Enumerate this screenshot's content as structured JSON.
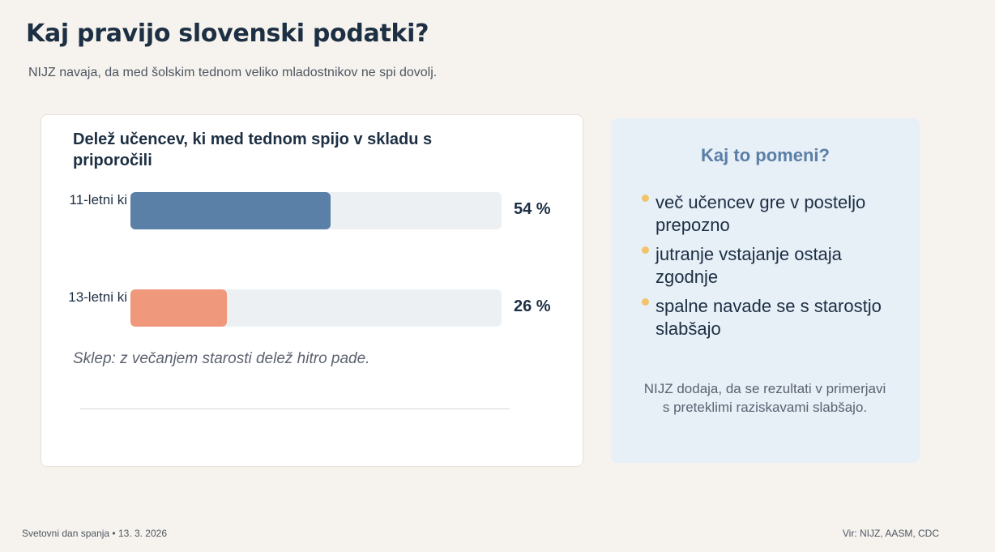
{
  "title": "Kaj pravijo slovenski podatki?",
  "subtitle": "NIJZ navaja, da med šolskim tednom veliko mladostnikov ne spi dovolj.",
  "chart_data": {
    "type": "bar",
    "orientation": "horizontal",
    "title": "Delež učencev, ki med tednom spijo v skladu s priporočili",
    "categories": [
      "11-letni ki",
      "13-letni ki"
    ],
    "values": [
      54,
      26
    ],
    "value_labels": [
      "54 %",
      "26 %"
    ],
    "colors": [
      "#5a80a7",
      "#f0987b"
    ],
    "xlim": [
      0,
      100
    ],
    "conclusion": "Sklep: z večanjem starosti delež hitro pade."
  },
  "side": {
    "title": "Kaj to pomeni?",
    "bullets": [
      "več učencev gre v posteljo prepozno",
      "jutranje vstajanje ostaja zgodnje",
      "spalne navade se s starostjo slabšajo"
    ],
    "note": "NIJZ dodaja, da se rezultati v primerjavi s preteklimi raziskavami slabšajo."
  },
  "footer": {
    "left": "Svetovni dan spanja • 13. 3. 2026",
    "right": "Vir: NIJZ, AASM, CDC"
  }
}
